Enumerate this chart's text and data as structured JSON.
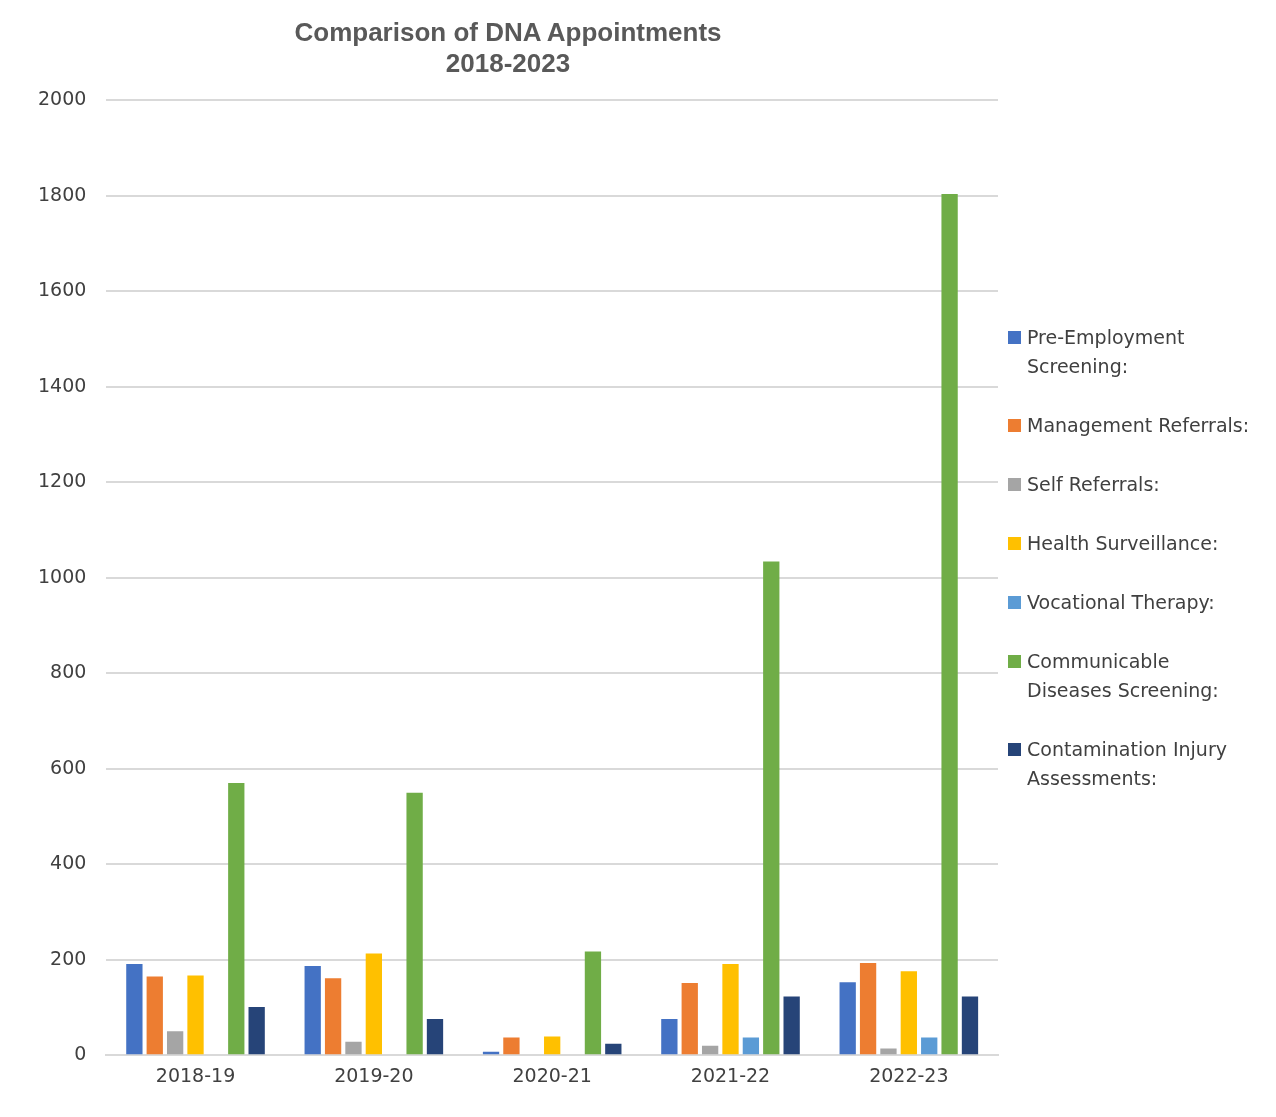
{
  "chart_data": {
    "type": "bar",
    "title": "Comparison of DNA Appointments 2018-2023",
    "categories": [
      "2018-19",
      "2019-20",
      "2020-21",
      "2021-22",
      "2022-23"
    ],
    "series": [
      {
        "name": "Pre-Employment Screening:",
        "color": "#4472c4",
        "values": [
          191,
          187,
          7,
          76,
          153
        ]
      },
      {
        "name": "Management Referrals:",
        "color": "#ed7d31",
        "values": [
          165,
          161,
          37,
          151,
          193
        ]
      },
      {
        "name": "Self Referrals:",
        "color": "#a5a5a5",
        "values": [
          50,
          28,
          null,
          20,
          14
        ]
      },
      {
        "name": "Health Surveillance:",
        "color": "#ffc000",
        "values": [
          167,
          213,
          39,
          191,
          176
        ]
      },
      {
        "name": "Vocational Therapy:",
        "color": "#5b9bd5",
        "values": [
          null,
          null,
          null,
          37,
          37
        ]
      },
      {
        "name": "Communicable Diseases Screening:",
        "color": "#70ad47",
        "values": [
          570,
          550,
          217,
          1034,
          1804
        ]
      },
      {
        "name": "Contamination Injury Assessments:",
        "color": "#264478",
        "values": [
          101,
          76,
          24,
          123,
          123
        ]
      }
    ],
    "ylim": [
      0,
      2000
    ],
    "yticks": [
      0,
      200,
      400,
      600,
      800,
      1000,
      1200,
      1400,
      1600,
      1800,
      2000
    ],
    "grid": "y",
    "legend": "right"
  }
}
